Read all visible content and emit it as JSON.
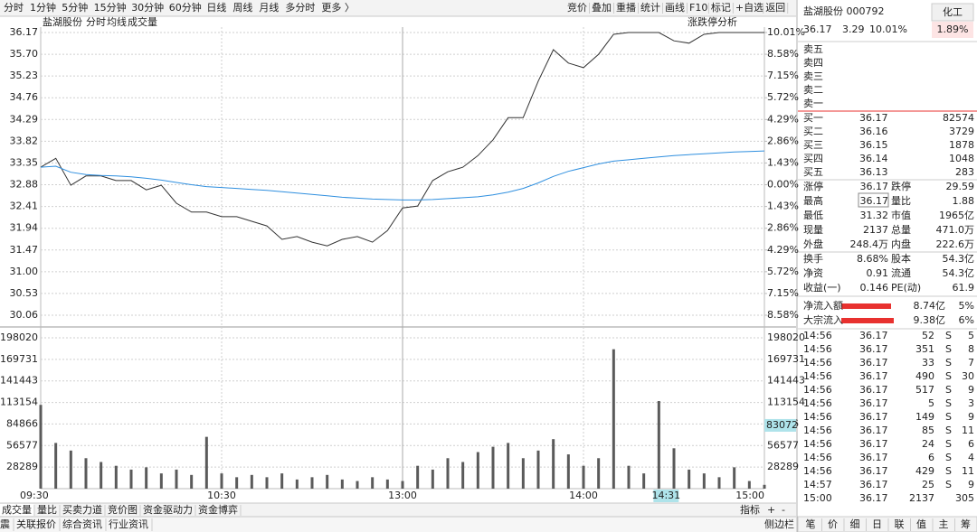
{
  "toolbar": {
    "periods": [
      "分时",
      "1分钟",
      "5分钟",
      "15分钟",
      "30分钟",
      "60分钟",
      "日线",
      "周线",
      "月线",
      "多分时",
      "更多 〉"
    ],
    "tools": [
      "竞价",
      "叠加",
      "重播",
      "统计",
      "画线",
      "F10",
      "标记",
      "+自选",
      "返回"
    ]
  },
  "chart_header": {
    "stock": "盐湖股份",
    "analysis": "涨跌停分析"
  },
  "chart_data": [
    {
      "type": "line",
      "x": [
        0,
        5,
        10,
        15,
        20,
        25,
        30,
        35,
        40,
        45,
        50,
        55,
        60,
        65,
        70,
        75,
        80,
        85,
        90,
        95,
        100,
        105,
        110,
        115,
        120,
        125,
        130,
        135,
        140,
        145,
        150,
        155,
        160,
        165,
        170,
        175,
        180,
        185,
        190,
        195,
        200,
        205,
        210,
        215,
        220,
        225,
        230,
        235,
        240
      ],
      "xlim": [
        0,
        240
      ],
      "ylim": [
        30.06,
        36.17
      ],
      "yticks": [
        36.17,
        {
          "value": 35.7,
          "label": "35.70"
        },
        35.23,
        34.76,
        34.29,
        33.82,
        33.35,
        32.88,
        32.41,
        31.94,
        31.47,
        {
          "value": 31,
          "label": "31.00"
        },
        30.53,
        30.06
      ],
      "y2lim": [
        -8.58,
        10.01
      ],
      "y2ticks": [
        {
          "value": 10.01,
          "label": "10.01%"
        },
        {
          "value": 8.58,
          "label": "8.58%"
        },
        {
          "value": 7.15,
          "label": "7.15%"
        },
        {
          "value": 5.72,
          "label": "5.72%"
        },
        {
          "value": 4.29,
          "label": "4.29%"
        },
        {
          "value": 2.86,
          "label": "2.86%"
        },
        {
          "value": 1.43,
          "label": "1.43%"
        },
        {
          "value": 0,
          "label": "0.00%"
        },
        {
          "value": -1.43,
          "label": "1.43%"
        },
        {
          "value": -2.86,
          "label": "2.86%"
        },
        {
          "value": -4.29,
          "label": "4.29%"
        },
        {
          "value": -5.72,
          "label": "5.72%"
        },
        {
          "value": -7.15,
          "label": "7.15%"
        },
        {
          "value": -8.58,
          "label": "8.58%"
        }
      ],
      "grid": true,
      "up_color": "#e8312f",
      "down_color": "#1e9b1e",
      "series": [
        {
          "name": "分时",
          "color": "#333333",
          "values": [
            33.26,
            33.45,
            32.87,
            33.07,
            33.07,
            32.97,
            32.97,
            32.77,
            32.87,
            32.48,
            32.29,
            32.29,
            32.19,
            32.19,
            32.09,
            31.99,
            31.7,
            31.76,
            31.64,
            31.56,
            31.7,
            31.76,
            31.64,
            31.89,
            32.38,
            32.42,
            32.97,
            33.16,
            33.26,
            33.51,
            33.85,
            34.33,
            34.33,
            35.12,
            35.8,
            35.51,
            35.41,
            35.7,
            36.13,
            36.17,
            36.17,
            36.17,
            35.99,
            35.94,
            36.13,
            36.17,
            36.17,
            36.17,
            36.17
          ]
        },
        {
          "name": "均线",
          "color": "#2f8fdf",
          "values": [
            33.26,
            33.28,
            33.15,
            33.1,
            33.08,
            33.07,
            33.05,
            33.02,
            32.98,
            32.93,
            32.88,
            32.84,
            32.82,
            32.8,
            32.78,
            32.76,
            32.73,
            32.7,
            32.67,
            32.64,
            32.61,
            32.59,
            32.57,
            32.56,
            32.55,
            32.55,
            32.56,
            32.58,
            32.6,
            32.62,
            32.66,
            32.72,
            32.8,
            32.92,
            33.06,
            33.17,
            33.25,
            33.33,
            33.39,
            33.42,
            33.45,
            33.48,
            33.51,
            33.53,
            33.55,
            33.57,
            33.59,
            33.6,
            33.61
          ]
        }
      ]
    },
    {
      "type": "bar",
      "x": [
        0,
        5,
        10,
        15,
        20,
        25,
        30,
        35,
        40,
        45,
        50,
        55,
        60,
        65,
        70,
        75,
        80,
        85,
        90,
        95,
        100,
        105,
        110,
        115,
        120,
        125,
        130,
        135,
        140,
        145,
        150,
        155,
        160,
        165,
        170,
        175,
        180,
        185,
        190,
        195,
        200,
        205,
        210,
        215,
        220,
        225,
        230,
        235,
        240
      ],
      "xlim": [
        0,
        240
      ],
      "ylim": [
        0,
        198020
      ],
      "yticks": [
        28289,
        56577,
        84866,
        113154,
        141443,
        169731,
        198020
      ],
      "xticks": [
        {
          "value": 0,
          "label": "09:30"
        },
        {
          "value": 60,
          "label": "10:30"
        },
        {
          "value": 120,
          "label": "13:00"
        },
        {
          "value": 180,
          "label": "14:00"
        },
        {
          "value": 240,
          "label": "15:00"
        }
      ],
      "grid": true,
      "cursor": {
        "x": {
          "value": 211,
          "label": "14:31"
        },
        "y": 83072
      },
      "series": [
        {
          "name": "成交量",
          "color": "#5a5a5a",
          "values": [
            110000,
            60000,
            50000,
            40000,
            35000,
            30000,
            25000,
            28000,
            20000,
            25000,
            18000,
            68000,
            20000,
            15000,
            18000,
            15000,
            20000,
            12000,
            15000,
            18000,
            12000,
            10000,
            15000,
            12000,
            10000,
            30000,
            25000,
            40000,
            35000,
            48000,
            55000,
            60000,
            40000,
            50000,
            65000,
            45000,
            30000,
            40000,
            183000,
            30000,
            20000,
            115000,
            53000,
            25000,
            20000,
            15000,
            28000,
            10000,
            5000
          ]
        }
      ]
    }
  ],
  "indicator_tabs": {
    "tabs": [
      "成交量",
      "量比",
      "买卖力道",
      "竞价图",
      "资金驱动力",
      "资金博弈"
    ],
    "controls": [
      "指标",
      "+",
      "-"
    ]
  },
  "bottom_bar": {
    "tabs": [
      "震",
      "关联报价",
      "综合资讯",
      "行业资讯"
    ],
    "sidebar": "侧边栏"
  },
  "quote": {
    "name": "盐湖股份 000792",
    "sector": "化工",
    "price": "36.17",
    "change": "3.29",
    "change_pct": "10.01%",
    "sector_pct": "1.89%",
    "asks": [
      "卖五",
      "卖四",
      "卖三",
      "卖二",
      "卖一"
    ],
    "bids": [
      [
        "买一",
        "36.17",
        "82574"
      ],
      [
        "买二",
        "36.16",
        "3729"
      ],
      [
        "买三",
        "36.15",
        "1878"
      ],
      [
        "买四",
        "36.14",
        "1048"
      ],
      [
        "买五",
        "36.13",
        "283"
      ]
    ],
    "stats": [
      [
        "涨停",
        "36.17",
        "跌停",
        "29.59"
      ],
      [
        "最高",
        "36.17",
        "量比",
        "1.88"
      ],
      [
        "最低",
        "31.32",
        "市值",
        "1965亿"
      ],
      [
        "现量",
        "2137",
        "总量",
        "471.0万"
      ],
      [
        "外盘",
        "248.4万",
        "内盘",
        "222.6万"
      ]
    ],
    "stats2": [
      [
        "换手",
        "8.68%",
        "股本",
        "54.3亿"
      ],
      [
        "净资",
        "0.91",
        "流通",
        "54.3亿"
      ],
      [
        "收益(一)",
        "0.146",
        "PE(动)",
        "61.9"
      ]
    ],
    "fund_flow": [
      [
        "净流入额",
        "8.74亿",
        "5%"
      ],
      [
        "大宗流入",
        "9.38亿",
        "6%"
      ]
    ],
    "trades": [
      {
        "time": "14:56",
        "price": "36.17",
        "volume": "52",
        "side": "S",
        "count": "5"
      },
      {
        "time": "14:56",
        "price": "36.17",
        "volume": "351",
        "side": "S",
        "count": "8"
      },
      {
        "time": "14:56",
        "price": "36.17",
        "volume": "33",
        "side": "S",
        "count": "7"
      },
      {
        "time": "14:56",
        "price": "36.17",
        "volume": "490",
        "side": "S",
        "count": "30"
      },
      {
        "time": "14:56",
        "price": "36.17",
        "volume": "517",
        "side": "S",
        "count": "9"
      },
      {
        "time": "14:56",
        "price": "36.17",
        "volume": "5",
        "side": "S",
        "count": "3"
      },
      {
        "time": "14:56",
        "price": "36.17",
        "volume": "149",
        "side": "S",
        "count": "9"
      },
      {
        "time": "14:56",
        "price": "36.17",
        "volume": "85",
        "side": "S",
        "count": "11"
      },
      {
        "time": "14:56",
        "price": "36.17",
        "volume": "24",
        "side": "S",
        "count": "6"
      },
      {
        "time": "14:56",
        "price": "36.17",
        "volume": "6",
        "side": "S",
        "count": "4"
      },
      {
        "time": "14:56",
        "price": "36.17",
        "volume": "429",
        "side": "S",
        "count": "11"
      },
      {
        "time": "14:57",
        "price": "36.17",
        "volume": "25",
        "side": "S",
        "count": "9"
      },
      {
        "time": "15:00",
        "price": "36.17",
        "volume": "2137",
        "count": "305"
      }
    ],
    "tabs": [
      "笔",
      "价",
      "细",
      "日",
      "联",
      "值",
      "主",
      "筹"
    ]
  }
}
